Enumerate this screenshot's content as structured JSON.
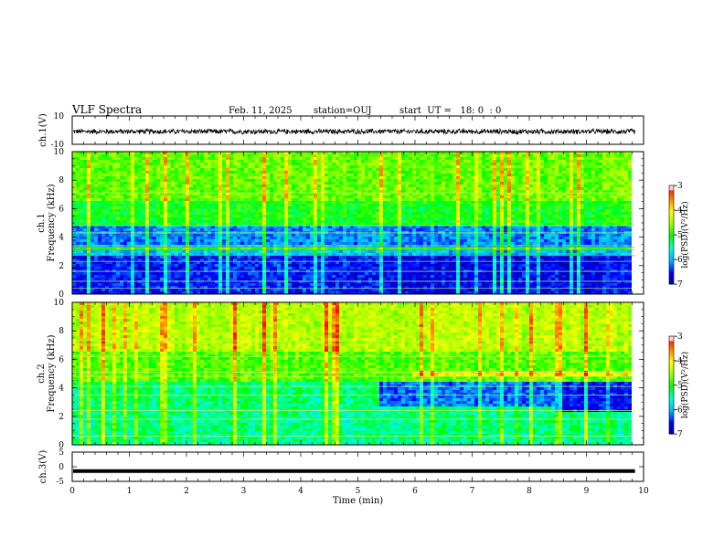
{
  "header": {
    "title": "VLF Spectra",
    "date": "Feb. 11, 2025",
    "station": "station=OUJ",
    "start": "start  UT =   18: 0  : 0"
  },
  "colors": {
    "spectrogram_scale": [
      "#00008b",
      "#0000ff",
      "#00b4ff",
      "#00ffd0",
      "#00ff00",
      "#a0ff00",
      "#ffff00",
      "#ff8000",
      "#ff0000",
      "#ffd0d0"
    ]
  },
  "chart_data": [
    {
      "type": "line",
      "ylabel": "ch.1(V)",
      "y_tick_labels": [
        "10",
        "-10"
      ],
      "ylim": [
        -10,
        10
      ],
      "series": [
        {
          "mean": 0,
          "amplitude": 2
        }
      ],
      "xlim": [
        0,
        10
      ]
    },
    {
      "type": "heatmap",
      "ylabel_line1": "ch.1",
      "ylabel_line2": "Frequency (kHz)",
      "y_tick_labels": [
        "0",
        "2",
        "4",
        "6",
        "8",
        "10"
      ],
      "ylim": [
        0,
        10
      ],
      "xlim": [
        0,
        9.85
      ],
      "colorbar": {
        "label": "log(PSD)(V²/Hz)",
        "tick_labels": [
          "-3",
          "-4",
          "-5",
          "-6",
          "-7"
        ],
        "range": [
          -7,
          -3
        ]
      }
    },
    {
      "type": "heatmap",
      "ylabel_line1": "ch.2",
      "ylabel_line2": "Frequency (kHz)",
      "y_tick_labels": [
        "0",
        "2",
        "4",
        "6",
        "8",
        "10"
      ],
      "ylim": [
        0,
        10
      ],
      "xlim": [
        0,
        9.85
      ],
      "colorbar": {
        "label": "log(PSD)(V²/Hz)",
        "tick_labels": [
          "-3",
          "-4",
          "-5",
          "-6",
          "-7"
        ],
        "range": [
          -7,
          -3
        ]
      }
    },
    {
      "type": "line",
      "ylabel": "ch.3(V)",
      "y_tick_labels": [
        "5",
        "0",
        "-5"
      ],
      "ylim": [
        -5,
        5
      ],
      "series": [
        {
          "constant": -1.5
        }
      ],
      "xlim": [
        0,
        10
      ],
      "xlabel": "Time (min)",
      "x_tick_labels": [
        "0",
        "1",
        "2",
        "3",
        "4",
        "5",
        "6",
        "7",
        "8",
        "9",
        "10"
      ]
    }
  ]
}
